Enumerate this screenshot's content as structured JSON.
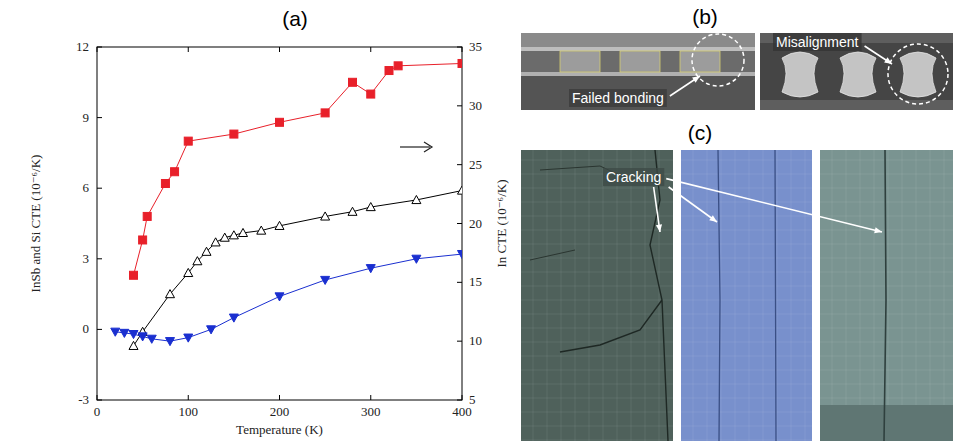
{
  "chart_data": {
    "type": "line",
    "title": "(a)",
    "x_label": "Temperature (K)",
    "y_label": "InSb and Si CTE (10⁻⁶/K)",
    "y2_label": "In CTE (10⁻⁶/K)",
    "xlim": [
      0,
      400
    ],
    "xticks": [
      0,
      100,
      200,
      300,
      400
    ],
    "ylim": [
      -3,
      12
    ],
    "yticks": [
      -3,
      0,
      3,
      6,
      9,
      12
    ],
    "y2lim": [
      5,
      35
    ],
    "y2ticks": [
      5,
      10,
      15,
      20,
      25,
      30,
      35
    ],
    "series": [
      {
        "color": "#e8202a",
        "marker": "square",
        "line_style": "solid",
        "axis": "y2",
        "x": [
          40,
          50,
          55,
          75,
          85,
          100,
          150,
          200,
          250,
          280,
          300,
          320,
          330,
          400
        ],
        "values": [
          15.6,
          18.6,
          20.6,
          23.4,
          24.4,
          27.0,
          27.6,
          28.6,
          29.4,
          32.0,
          31.0,
          33.0,
          33.4,
          33.6
        ]
      },
      {
        "color": "#000000",
        "marker": "open-triangle",
        "line_style": "solid",
        "x": [
          40,
          50,
          80,
          100,
          110,
          120,
          130,
          140,
          150,
          160,
          180,
          200,
          250,
          280,
          300,
          350,
          400
        ],
        "values": [
          -0.7,
          -0.1,
          1.5,
          2.4,
          2.9,
          3.3,
          3.7,
          3.9,
          4.0,
          4.1,
          4.2,
          4.4,
          4.8,
          5.0,
          5.2,
          5.5,
          5.9
        ]
      },
      {
        "color": "#1a2fd0",
        "marker": "triangle-down",
        "line_style": "solid",
        "x": [
          20,
          30,
          40,
          50,
          60,
          80,
          100,
          125,
          150,
          200,
          250,
          300,
          350,
          400
        ],
        "values": [
          -0.1,
          -0.15,
          -0.2,
          -0.3,
          -0.4,
          -0.5,
          -0.35,
          0.0,
          0.5,
          1.4,
          2.1,
          2.6,
          3.0,
          3.2
        ]
      }
    ]
  },
  "images": {
    "b": {
      "label": "(b)",
      "annotations": [
        "Failed bonding",
        "Misalignment"
      ]
    },
    "c": {
      "label": "(c)",
      "annotations": [
        "Cracking"
      ]
    }
  }
}
